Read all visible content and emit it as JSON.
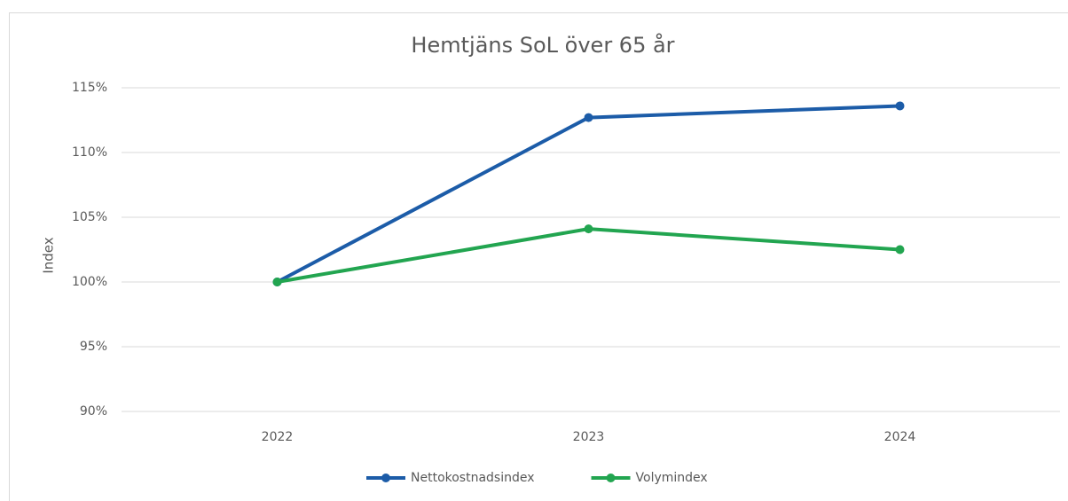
{
  "chart_data": {
    "type": "line",
    "title": "Hemtjäns SoL över 65 år",
    "y_label": "Index",
    "categories": [
      "2022",
      "2023",
      "2024"
    ],
    "series": [
      {
        "name": "Nettokostnadsindex",
        "color": "#1c5ca8",
        "values": [
          100,
          112.7,
          113.6
        ]
      },
      {
        "name": "Volymindex",
        "color": "#22a550",
        "values": [
          100,
          104.1,
          102.5
        ]
      }
    ],
    "ylim": [
      90,
      115
    ],
    "yticks": [
      {
        "value": 90,
        "label": "90%"
      },
      {
        "value": 95,
        "label": "95%"
      },
      {
        "value": 100,
        "label": "100%"
      },
      {
        "value": 105,
        "label": "105%"
      },
      {
        "value": 110,
        "label": "110%"
      },
      {
        "value": 115,
        "label": "115%"
      }
    ],
    "grid": true,
    "legend": "bottom"
  }
}
